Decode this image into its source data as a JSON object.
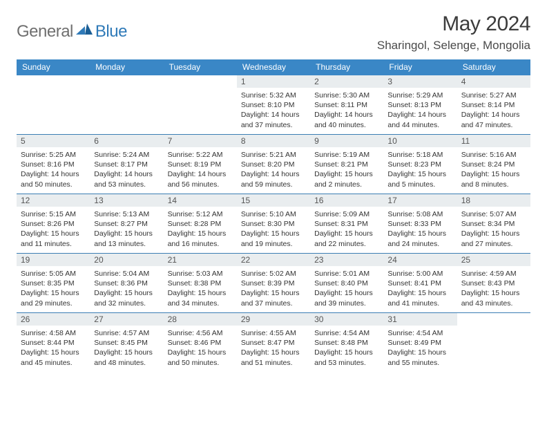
{
  "logo": {
    "general": "General",
    "blue": "Blue"
  },
  "title": "May 2024",
  "location": "Sharingol, Selenge, Mongolia",
  "colors": {
    "header_bg": "#3a87c6",
    "header_text": "#ffffff",
    "daynum_bg": "#e9edef",
    "rule": "#3a7db3",
    "logo_gray": "#6f6f6f",
    "logo_blue": "#2f7ab8"
  },
  "day_headers": [
    "Sunday",
    "Monday",
    "Tuesday",
    "Wednesday",
    "Thursday",
    "Friday",
    "Saturday"
  ],
  "weeks": [
    [
      null,
      null,
      null,
      {
        "n": "1",
        "sr": "Sunrise: 5:32 AM",
        "ss": "Sunset: 8:10 PM",
        "dl": "Daylight: 14 hours and 37 minutes."
      },
      {
        "n": "2",
        "sr": "Sunrise: 5:30 AM",
        "ss": "Sunset: 8:11 PM",
        "dl": "Daylight: 14 hours and 40 minutes."
      },
      {
        "n": "3",
        "sr": "Sunrise: 5:29 AM",
        "ss": "Sunset: 8:13 PM",
        "dl": "Daylight: 14 hours and 44 minutes."
      },
      {
        "n": "4",
        "sr": "Sunrise: 5:27 AM",
        "ss": "Sunset: 8:14 PM",
        "dl": "Daylight: 14 hours and 47 minutes."
      }
    ],
    [
      {
        "n": "5",
        "sr": "Sunrise: 5:25 AM",
        "ss": "Sunset: 8:16 PM",
        "dl": "Daylight: 14 hours and 50 minutes."
      },
      {
        "n": "6",
        "sr": "Sunrise: 5:24 AM",
        "ss": "Sunset: 8:17 PM",
        "dl": "Daylight: 14 hours and 53 minutes."
      },
      {
        "n": "7",
        "sr": "Sunrise: 5:22 AM",
        "ss": "Sunset: 8:19 PM",
        "dl": "Daylight: 14 hours and 56 minutes."
      },
      {
        "n": "8",
        "sr": "Sunrise: 5:21 AM",
        "ss": "Sunset: 8:20 PM",
        "dl": "Daylight: 14 hours and 59 minutes."
      },
      {
        "n": "9",
        "sr": "Sunrise: 5:19 AM",
        "ss": "Sunset: 8:21 PM",
        "dl": "Daylight: 15 hours and 2 minutes."
      },
      {
        "n": "10",
        "sr": "Sunrise: 5:18 AM",
        "ss": "Sunset: 8:23 PM",
        "dl": "Daylight: 15 hours and 5 minutes."
      },
      {
        "n": "11",
        "sr": "Sunrise: 5:16 AM",
        "ss": "Sunset: 8:24 PM",
        "dl": "Daylight: 15 hours and 8 minutes."
      }
    ],
    [
      {
        "n": "12",
        "sr": "Sunrise: 5:15 AM",
        "ss": "Sunset: 8:26 PM",
        "dl": "Daylight: 15 hours and 11 minutes."
      },
      {
        "n": "13",
        "sr": "Sunrise: 5:13 AM",
        "ss": "Sunset: 8:27 PM",
        "dl": "Daylight: 15 hours and 13 minutes."
      },
      {
        "n": "14",
        "sr": "Sunrise: 5:12 AM",
        "ss": "Sunset: 8:28 PM",
        "dl": "Daylight: 15 hours and 16 minutes."
      },
      {
        "n": "15",
        "sr": "Sunrise: 5:10 AM",
        "ss": "Sunset: 8:30 PM",
        "dl": "Daylight: 15 hours and 19 minutes."
      },
      {
        "n": "16",
        "sr": "Sunrise: 5:09 AM",
        "ss": "Sunset: 8:31 PM",
        "dl": "Daylight: 15 hours and 22 minutes."
      },
      {
        "n": "17",
        "sr": "Sunrise: 5:08 AM",
        "ss": "Sunset: 8:33 PM",
        "dl": "Daylight: 15 hours and 24 minutes."
      },
      {
        "n": "18",
        "sr": "Sunrise: 5:07 AM",
        "ss": "Sunset: 8:34 PM",
        "dl": "Daylight: 15 hours and 27 minutes."
      }
    ],
    [
      {
        "n": "19",
        "sr": "Sunrise: 5:05 AM",
        "ss": "Sunset: 8:35 PM",
        "dl": "Daylight: 15 hours and 29 minutes."
      },
      {
        "n": "20",
        "sr": "Sunrise: 5:04 AM",
        "ss": "Sunset: 8:36 PM",
        "dl": "Daylight: 15 hours and 32 minutes."
      },
      {
        "n": "21",
        "sr": "Sunrise: 5:03 AM",
        "ss": "Sunset: 8:38 PM",
        "dl": "Daylight: 15 hours and 34 minutes."
      },
      {
        "n": "22",
        "sr": "Sunrise: 5:02 AM",
        "ss": "Sunset: 8:39 PM",
        "dl": "Daylight: 15 hours and 37 minutes."
      },
      {
        "n": "23",
        "sr": "Sunrise: 5:01 AM",
        "ss": "Sunset: 8:40 PM",
        "dl": "Daylight: 15 hours and 39 minutes."
      },
      {
        "n": "24",
        "sr": "Sunrise: 5:00 AM",
        "ss": "Sunset: 8:41 PM",
        "dl": "Daylight: 15 hours and 41 minutes."
      },
      {
        "n": "25",
        "sr": "Sunrise: 4:59 AM",
        "ss": "Sunset: 8:43 PM",
        "dl": "Daylight: 15 hours and 43 minutes."
      }
    ],
    [
      {
        "n": "26",
        "sr": "Sunrise: 4:58 AM",
        "ss": "Sunset: 8:44 PM",
        "dl": "Daylight: 15 hours and 45 minutes."
      },
      {
        "n": "27",
        "sr": "Sunrise: 4:57 AM",
        "ss": "Sunset: 8:45 PM",
        "dl": "Daylight: 15 hours and 48 minutes."
      },
      {
        "n": "28",
        "sr": "Sunrise: 4:56 AM",
        "ss": "Sunset: 8:46 PM",
        "dl": "Daylight: 15 hours and 50 minutes."
      },
      {
        "n": "29",
        "sr": "Sunrise: 4:55 AM",
        "ss": "Sunset: 8:47 PM",
        "dl": "Daylight: 15 hours and 51 minutes."
      },
      {
        "n": "30",
        "sr": "Sunrise: 4:54 AM",
        "ss": "Sunset: 8:48 PM",
        "dl": "Daylight: 15 hours and 53 minutes."
      },
      {
        "n": "31",
        "sr": "Sunrise: 4:54 AM",
        "ss": "Sunset: 8:49 PM",
        "dl": "Daylight: 15 hours and 55 minutes."
      },
      null
    ]
  ]
}
